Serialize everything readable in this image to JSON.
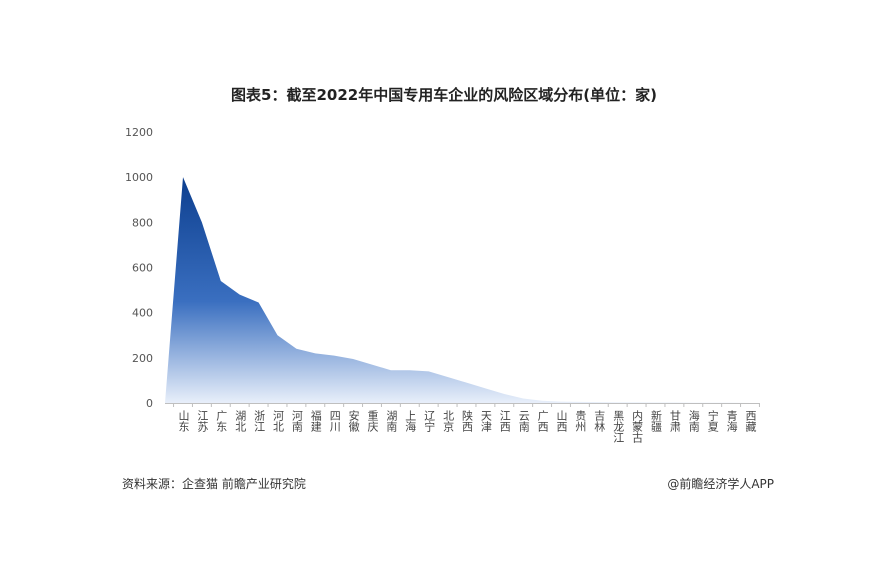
{
  "chart_data": {
    "type": "area",
    "title": "图表5：截至2022年中国专用车企业的风险区域分布(单位：家)",
    "xlabel": "",
    "ylabel": "",
    "ylim": [
      0,
      1200
    ],
    "yticks": [
      0,
      200,
      400,
      600,
      800,
      1000,
      1200
    ],
    "grid": false,
    "categories": [
      "山东",
      "江苏",
      "广东",
      "湖北",
      "浙江",
      "河北",
      "河南",
      "福建",
      "四川",
      "安徽",
      "重庆",
      "湖南",
      "上海",
      "辽宁",
      "北京",
      "陕西",
      "天津",
      "江西",
      "云南",
      "广西",
      "山西",
      "贵州",
      "吉林",
      "黑龙江",
      "内蒙古",
      "新疆",
      "甘肃",
      "海南",
      "宁夏",
      "青海",
      "西藏"
    ],
    "values": [
      1000,
      800,
      540,
      480,
      445,
      300,
      240,
      220,
      210,
      195,
      170,
      145,
      145,
      140,
      115,
      90,
      65,
      40,
      20,
      10,
      6,
      5,
      4,
      3,
      3,
      2,
      2,
      1,
      1,
      1,
      0
    ],
    "colors": {
      "top": "#0d3f8f",
      "bottom": "#e8effa",
      "axis": "#bfbfbf"
    }
  },
  "footer": {
    "source": "资料来源：企查猫 前瞻产业研究院",
    "credit": "@前瞻经济学人APP"
  }
}
